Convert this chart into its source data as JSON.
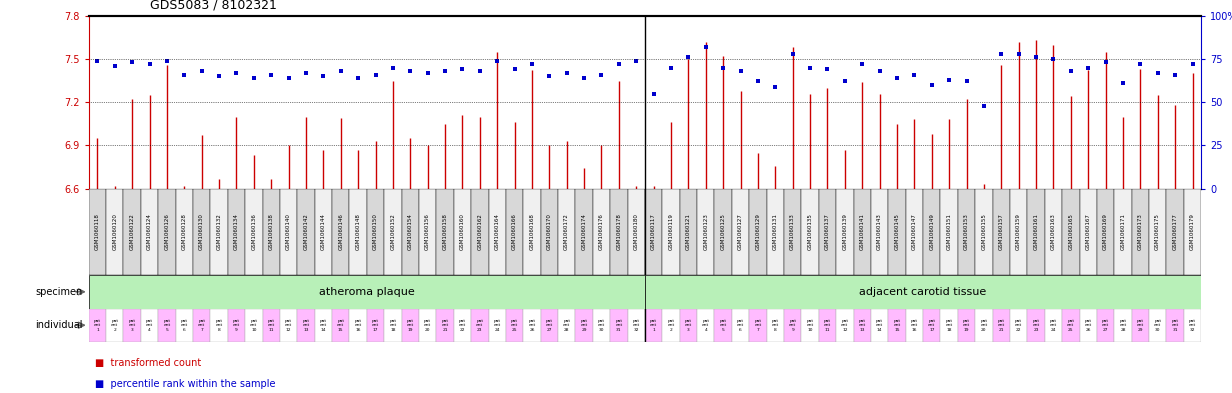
{
  "title": "GDS5083 / 8102321",
  "ylim_left": [
    6.6,
    7.8
  ],
  "ylim_right": [
    0,
    100
  ],
  "yticks_left": [
    6.6,
    6.9,
    7.2,
    7.5,
    7.8
  ],
  "ytick_labels_left": [
    "6.6",
    "6.9",
    "7.2",
    "7.5",
    "7.8"
  ],
  "yticks_right": [
    0,
    25,
    50,
    75,
    100
  ],
  "ytick_labels_right": [
    "0",
    "25",
    "50",
    "75",
    "100%"
  ],
  "samples": [
    "GSM1060118",
    "GSM1060120",
    "GSM1060122",
    "GSM1060124",
    "GSM1060126",
    "GSM1060128",
    "GSM1060130",
    "GSM1060132",
    "GSM1060134",
    "GSM1060136",
    "GSM1060138",
    "GSM1060140",
    "GSM1060142",
    "GSM1060144",
    "GSM1060146",
    "GSM1060148",
    "GSM1060150",
    "GSM1060152",
    "GSM1060154",
    "GSM1060156",
    "GSM1060158",
    "GSM1060160",
    "GSM1060162",
    "GSM1060164",
    "GSM1060166",
    "GSM1060168",
    "GSM1060170",
    "GSM1060172",
    "GSM1060174",
    "GSM1060176",
    "GSM1060178",
    "GSM1060180",
    "GSM1060117",
    "GSM1060119",
    "GSM1060121",
    "GSM1060123",
    "GSM1060125",
    "GSM1060127",
    "GSM1060129",
    "GSM1060131",
    "GSM1060133",
    "GSM1060135",
    "GSM1060137",
    "GSM1060139",
    "GSM1060141",
    "GSM1060143",
    "GSM1060145",
    "GSM1060147",
    "GSM1060149",
    "GSM1060151",
    "GSM1060153",
    "GSM1060155",
    "GSM1060157",
    "GSM1060159",
    "GSM1060161",
    "GSM1060163",
    "GSM1060165",
    "GSM1060167",
    "GSM1060169",
    "GSM1060171",
    "GSM1060173",
    "GSM1060175",
    "GSM1060177",
    "GSM1060179"
  ],
  "red_values": [
    6.95,
    6.62,
    7.22,
    7.25,
    7.46,
    6.62,
    6.97,
    6.67,
    7.1,
    6.83,
    6.67,
    6.9,
    7.1,
    6.87,
    7.09,
    6.87,
    6.93,
    7.35,
    6.95,
    6.9,
    7.05,
    7.11,
    7.1,
    7.55,
    7.06,
    7.42,
    6.9,
    6.93,
    6.74,
    6.9,
    7.35,
    6.62,
    6.62,
    7.06,
    7.5,
    7.62,
    7.52,
    7.28,
    6.85,
    6.76,
    7.58,
    7.26,
    7.3,
    6.87,
    7.34,
    7.26,
    7.05,
    7.08,
    6.98,
    7.08,
    7.22,
    6.63,
    7.46,
    7.62,
    7.63,
    7.6,
    7.24,
    7.42,
    7.55,
    7.1,
    7.43,
    7.25,
    7.18,
    7.4
  ],
  "blue_values": [
    74,
    71,
    73,
    72,
    74,
    66,
    68,
    65,
    67,
    64,
    66,
    64,
    67,
    65,
    68,
    64,
    66,
    70,
    68,
    67,
    68,
    69,
    68,
    74,
    69,
    72,
    65,
    67,
    64,
    66,
    72,
    74,
    55,
    70,
    76,
    82,
    70,
    68,
    62,
    59,
    78,
    70,
    69,
    62,
    72,
    68,
    64,
    66,
    60,
    63,
    62,
    48,
    78,
    78,
    76,
    75,
    68,
    70,
    73,
    61,
    72,
    67,
    66,
    72
  ],
  "specimen_group1_label": "atheroma plaque",
  "specimen_group2_label": "adjacent carotid tissue",
  "bar_color": "#cc0000",
  "dot_color": "#0000cc",
  "background_color": "#ffffff",
  "left_axis_color": "#cc0000",
  "right_axis_color": "#0000cc",
  "specimen_row_color": "#b8f0b8",
  "ind_color_pink": "#ffbbff",
  "ind_color_white": "#ffffff",
  "cell_border_color": "#aaaaaa",
  "label_color": "#444444",
  "hgrid_yticks": [
    6.9,
    7.2,
    7.5
  ],
  "sample_cell_color_odd": "#d8d8d8",
  "sample_cell_color_even": "#f0f0f0"
}
